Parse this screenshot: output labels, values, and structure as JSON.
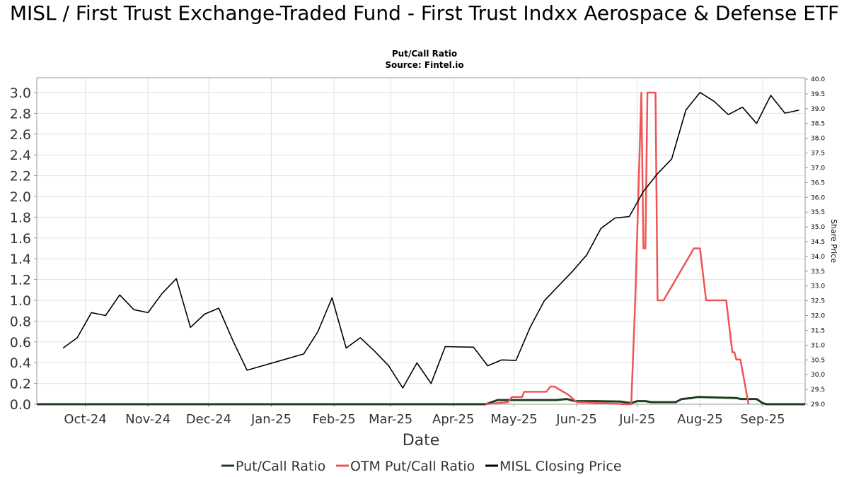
{
  "header": {
    "title": "MISL / First Trust Exchange-Traded Fund - First Trust Indxx Aerospace & Defense ETF",
    "subtitle1": "Put/Call Ratio",
    "subtitle2": "Source: Fintel.io"
  },
  "chart_data": {
    "type": "line",
    "xlabel": "Date",
    "ylabel": "",
    "ylabel_right": "Share Price",
    "x_range": [
      "2024-09-07",
      "2025-09-22"
    ],
    "ylim": [
      0,
      3.0
    ],
    "ylim_right": [
      29.0,
      40.0
    ],
    "y_ticks": [
      "0.0",
      "0.2",
      "0.4",
      "0.6",
      "0.8",
      "1.0",
      "1.2",
      "1.4",
      "1.6",
      "1.8",
      "2.0",
      "2.2",
      "2.4",
      "2.6",
      "2.8",
      "3.0"
    ],
    "y_ticks_right": [
      "29.0",
      "29.5",
      "30.0",
      "30.5",
      "31.0",
      "31.5",
      "32.0",
      "32.5",
      "33.0",
      "33.5",
      "34.0",
      "34.5",
      "35.0",
      "35.5",
      "36.0",
      "36.5",
      "37.0",
      "37.5",
      "38.0",
      "38.5",
      "39.0",
      "39.5",
      "40.0"
    ],
    "x_ticks": [
      {
        "label": "Oct-24",
        "date": "2024-10-01"
      },
      {
        "label": "Nov-24",
        "date": "2024-11-01"
      },
      {
        "label": "Dec-24",
        "date": "2024-12-01"
      },
      {
        "label": "Jan-25",
        "date": "2025-01-01"
      },
      {
        "label": "Feb-25",
        "date": "2025-02-01"
      },
      {
        "label": "Mar-25",
        "date": "2025-03-01"
      },
      {
        "label": "Apr-25",
        "date": "2025-04-01"
      },
      {
        "label": "May-25",
        "date": "2025-05-01"
      },
      {
        "label": "Jun-25",
        "date": "2025-06-01"
      },
      {
        "label": "Jul-25",
        "date": "2025-07-01"
      },
      {
        "label": "Aug-25",
        "date": "2025-08-01"
      },
      {
        "label": "Sep-25",
        "date": "2025-09-01"
      }
    ],
    "grid": true,
    "legend_position": "bottom",
    "series": [
      {
        "name": "Put/Call Ratio",
        "color": "#1f3d1f",
        "axis": "left",
        "points": [
          [
            "2024-09-07",
            0
          ],
          [
            "2025-04-17",
            0
          ],
          [
            "2025-04-23",
            0.04
          ],
          [
            "2025-05-12",
            0.04
          ],
          [
            "2025-05-22",
            0.04
          ],
          [
            "2025-05-27",
            0.05
          ],
          [
            "2025-05-31",
            0.03
          ],
          [
            "2025-06-10",
            0.03
          ],
          [
            "2025-06-23",
            0.025
          ],
          [
            "2025-06-28",
            0.01
          ],
          [
            "2025-07-01",
            0.03
          ],
          [
            "2025-07-05",
            0.03
          ],
          [
            "2025-07-08",
            0.02
          ],
          [
            "2025-07-20",
            0.02
          ],
          [
            "2025-07-23",
            0.05
          ],
          [
            "2025-07-28",
            0.06
          ],
          [
            "2025-07-31",
            0.07
          ],
          [
            "2025-08-08",
            0.065
          ],
          [
            "2025-08-19",
            0.06
          ],
          [
            "2025-08-21",
            0.05
          ],
          [
            "2025-08-29",
            0.05
          ],
          [
            "2025-09-01",
            0.01
          ],
          [
            "2025-09-03",
            0
          ],
          [
            "2025-09-22",
            0
          ]
        ]
      },
      {
        "name": "OTM Put/Call Ratio",
        "color": "#f05555",
        "axis": "left",
        "points": [
          [
            "2025-04-17",
            0
          ],
          [
            "2025-04-28",
            0.02
          ],
          [
            "2025-04-30",
            0.07
          ],
          [
            "2025-05-05",
            0.07
          ],
          [
            "2025-05-06",
            0.12
          ],
          [
            "2025-05-17",
            0.12
          ],
          [
            "2025-05-19",
            0.17
          ],
          [
            "2025-05-21",
            0.17
          ],
          [
            "2025-05-28",
            0.09
          ],
          [
            "2025-06-01",
            0.02
          ],
          [
            "2025-06-26",
            0
          ],
          [
            "2025-06-28",
            0
          ],
          [
            "2025-06-30",
            1.0
          ],
          [
            "2025-07-03",
            3.0
          ],
          [
            "2025-07-04",
            1.5
          ],
          [
            "2025-07-05",
            1.5
          ],
          [
            "2025-07-06",
            3.0
          ],
          [
            "2025-07-10",
            3.0
          ],
          [
            "2025-07-11",
            1.0
          ],
          [
            "2025-07-14",
            1.0
          ],
          [
            "2025-07-29",
            1.5
          ],
          [
            "2025-08-01",
            1.5
          ],
          [
            "2025-08-04",
            1.0
          ],
          [
            "2025-08-14",
            1.0
          ],
          [
            "2025-08-17",
            0.5
          ],
          [
            "2025-08-18",
            0.5
          ],
          [
            "2025-08-19",
            0.43
          ],
          [
            "2025-08-21",
            0.43
          ],
          [
            "2025-08-25",
            0
          ]
        ]
      },
      {
        "name": "MISL Closing Price",
        "color": "#000000",
        "axis": "right",
        "points": [
          [
            "2024-09-20",
            30.9
          ],
          [
            "2024-09-27",
            31.25
          ],
          [
            "2024-10-04",
            32.1
          ],
          [
            "2024-10-11",
            32.0
          ],
          [
            "2024-10-18",
            32.7
          ],
          [
            "2024-10-25",
            32.2
          ],
          [
            "2024-11-01",
            32.1
          ],
          [
            "2024-11-08",
            32.75
          ],
          [
            "2024-11-15",
            33.25
          ],
          [
            "2024-11-22",
            31.6
          ],
          [
            "2024-11-29",
            32.05
          ],
          [
            "2024-12-06",
            32.25
          ],
          [
            "2024-12-13",
            31.15
          ],
          [
            "2024-12-20",
            30.15
          ],
          [
            "2025-01-17",
            30.7
          ],
          [
            "2025-01-24",
            31.45
          ],
          [
            "2025-01-31",
            32.6
          ],
          [
            "2025-02-07",
            30.9
          ],
          [
            "2025-02-14",
            31.25
          ],
          [
            "2025-02-21",
            30.8
          ],
          [
            "2025-02-28",
            30.3
          ],
          [
            "2025-03-07",
            29.55
          ],
          [
            "2025-03-14",
            30.4
          ],
          [
            "2025-03-21",
            29.7
          ],
          [
            "2025-03-28",
            30.95
          ],
          [
            "2025-04-11",
            30.93
          ],
          [
            "2025-04-18",
            30.3
          ],
          [
            "2025-04-25",
            30.5
          ],
          [
            "2025-05-02",
            30.48
          ],
          [
            "2025-05-09",
            31.6
          ],
          [
            "2025-05-16",
            32.5
          ],
          [
            "2025-05-30",
            33.5
          ],
          [
            "2025-06-06",
            34.05
          ],
          [
            "2025-06-13",
            34.95
          ],
          [
            "2025-06-20",
            35.3
          ],
          [
            "2025-06-27",
            35.35
          ],
          [
            "2025-07-04",
            36.2
          ],
          [
            "2025-07-11",
            36.8
          ],
          [
            "2025-07-18",
            37.3
          ],
          [
            "2025-07-25",
            38.95
          ],
          [
            "2025-08-01",
            39.55
          ],
          [
            "2025-08-08",
            39.25
          ],
          [
            "2025-08-15",
            38.8
          ],
          [
            "2025-08-22",
            39.05
          ],
          [
            "2025-08-29",
            38.5
          ],
          [
            "2025-09-05",
            39.45
          ],
          [
            "2025-09-12",
            38.85
          ],
          [
            "2025-09-19",
            38.95
          ]
        ]
      }
    ]
  }
}
